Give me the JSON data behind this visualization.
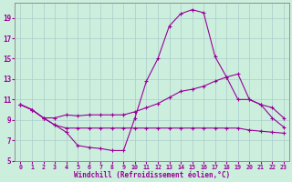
{
  "xlabel": "Windchill (Refroidissement éolien,°C)",
  "background_color": "#cceedd",
  "line_color": "#990099",
  "grid_color": "#aacccc",
  "xlim": [
    -0.5,
    23.5
  ],
  "ylim": [
    5,
    20.5
  ],
  "yticks": [
    5,
    7,
    9,
    11,
    13,
    15,
    17,
    19
  ],
  "xticks": [
    0,
    1,
    2,
    3,
    4,
    5,
    6,
    7,
    8,
    9,
    10,
    11,
    12,
    13,
    14,
    15,
    16,
    17,
    18,
    19,
    20,
    21,
    22,
    23
  ],
  "line1_x": [
    0,
    1,
    2,
    3,
    4,
    5,
    6,
    7,
    8,
    9,
    10,
    11,
    12,
    13,
    14,
    15,
    16,
    17,
    18,
    19,
    20,
    21,
    22,
    23
  ],
  "line1_y": [
    10.5,
    10.0,
    9.2,
    8.5,
    7.8,
    6.5,
    6.3,
    6.2,
    6.0,
    6.0,
    9.2,
    12.8,
    15.0,
    18.2,
    19.4,
    19.8,
    19.5,
    15.2,
    13.2,
    11.0,
    11.0,
    10.5,
    9.2,
    8.3
  ],
  "line2_x": [
    0,
    1,
    2,
    3,
    4,
    5,
    6,
    7,
    8,
    9,
    10,
    11,
    12,
    13,
    14,
    15,
    16,
    17,
    18,
    19,
    20,
    21,
    22,
    23
  ],
  "line2_y": [
    10.5,
    10.0,
    9.2,
    9.2,
    9.5,
    9.4,
    9.5,
    9.5,
    9.5,
    9.5,
    9.8,
    10.2,
    10.6,
    11.2,
    11.8,
    12.0,
    12.3,
    12.8,
    13.2,
    13.5,
    11.0,
    10.5,
    10.2,
    9.2
  ],
  "line3_x": [
    0,
    1,
    2,
    3,
    4,
    5,
    6,
    7,
    8,
    9,
    10,
    11,
    12,
    13,
    14,
    15,
    16,
    17,
    18,
    19,
    20,
    21,
    22,
    23
  ],
  "line3_y": [
    10.5,
    10.0,
    9.2,
    8.5,
    8.2,
    8.2,
    8.2,
    8.2,
    8.2,
    8.2,
    8.2,
    8.2,
    8.2,
    8.2,
    8.2,
    8.2,
    8.2,
    8.2,
    8.2,
    8.2,
    8.0,
    7.9,
    7.8,
    7.7
  ],
  "marker": "+"
}
